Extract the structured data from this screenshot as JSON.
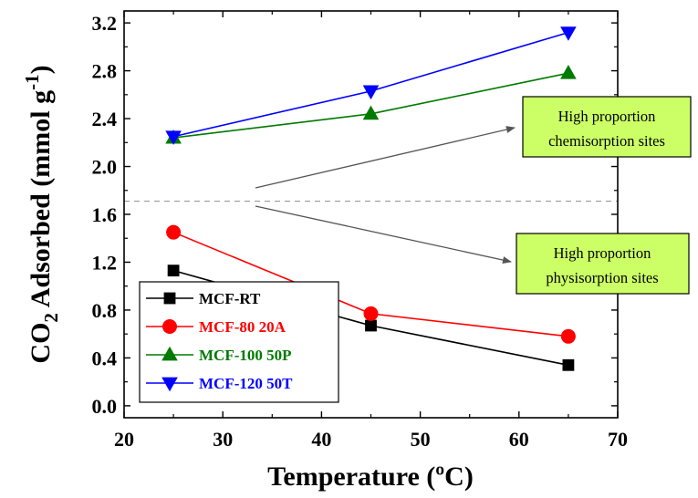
{
  "chart_data": {
    "type": "line",
    "x": [
      25,
      45,
      65
    ],
    "xlabel": "Temperature (ºC)",
    "ylabel_parts": [
      "CO",
      "2",
      " Adsorbed (mmol g",
      "-1",
      ")"
    ],
    "xlim": [
      20,
      70
    ],
    "ylim": [
      -0.1,
      3.3
    ],
    "xticks": [
      20,
      30,
      40,
      50,
      60,
      70
    ],
    "xtick_labels": [
      "20",
      "30",
      "40",
      "50",
      "60",
      "70"
    ],
    "yticks": [
      0.0,
      0.4,
      0.8,
      1.2,
      1.6,
      2.0,
      2.4,
      2.8,
      3.2
    ],
    "ytick_labels": [
      "0.0",
      "0.4",
      "0.8",
      "1.2",
      "1.6",
      "2.0",
      "2.4",
      "2.8",
      "3.2"
    ],
    "series": [
      {
        "name": "MCF-RT",
        "values": [
          1.13,
          0.67,
          0.34
        ],
        "color": "#000000",
        "marker": "square"
      },
      {
        "name": "MCF-80 20A",
        "values": [
          1.45,
          0.77,
          0.58
        ],
        "color": "#ff0000",
        "marker": "circle"
      },
      {
        "name": "MCF-100 50P",
        "values": [
          2.24,
          2.44,
          2.78
        ],
        "color": "#007a00",
        "marker": "triangle-up"
      },
      {
        "name": "MCF-120 50T",
        "values": [
          2.25,
          2.63,
          3.12
        ],
        "color": "#0000ff",
        "marker": "triangle-down"
      }
    ],
    "reference_line": {
      "y": 1.71,
      "style": "dashed",
      "color": "#999999"
    },
    "legend_position": "bottom-left",
    "annotations": [
      {
        "lines": [
          "High proportion",
          "chemisorption sites"
        ],
        "box_color": "#ccff66",
        "arrow_direction": "up"
      },
      {
        "lines": [
          "High proportion",
          "physisorption sites"
        ],
        "box_color": "#ccff66",
        "arrow_direction": "down"
      }
    ]
  }
}
